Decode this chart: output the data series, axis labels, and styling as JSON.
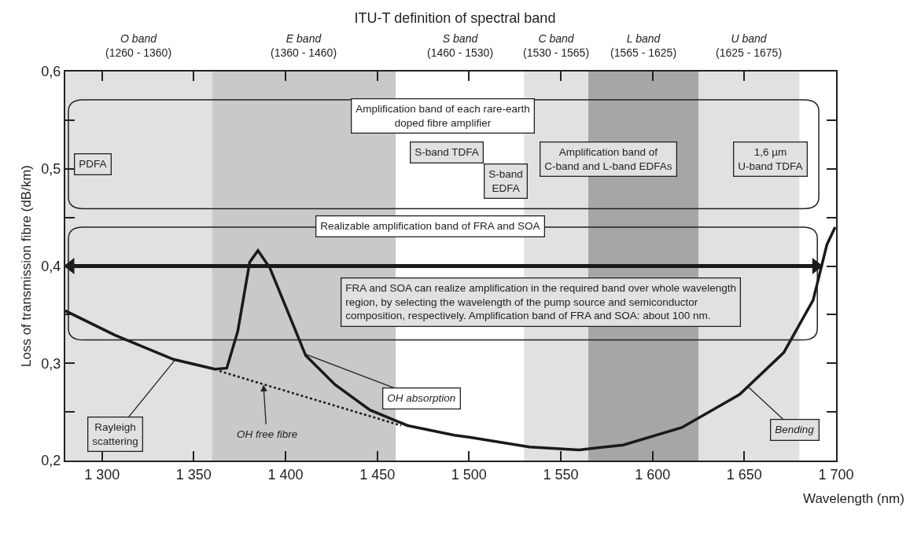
{
  "chart_data": {
    "type": "line",
    "title": "ITU-T definition of spectral band",
    "xlabel": "Wavelength (nm)",
    "ylabel": "Loss of transmission fibre (dB/km)",
    "xlim": [
      1280,
      1700
    ],
    "xticks": [
      {
        "value": 1300,
        "label": "1 300"
      },
      {
        "value": 1350,
        "label": "1 350"
      },
      {
        "value": 1400,
        "label": "1 400"
      },
      {
        "value": 1450,
        "label": "1 450"
      },
      {
        "value": 1500,
        "label": "1 500"
      },
      {
        "value": 1550,
        "label": "1 550"
      },
      {
        "value": 1600,
        "label": "1 600"
      },
      {
        "value": 1650,
        "label": "1 650"
      },
      {
        "value": 1700,
        "label": "1 700"
      }
    ],
    "ylim": [
      0.2,
      0.6
    ],
    "yticks": [
      {
        "value": 0.2,
        "label": "0,2"
      },
      {
        "value": 0.25,
        "label": null
      },
      {
        "value": 0.3,
        "label": "0,3"
      },
      {
        "value": 0.35,
        "label": null
      },
      {
        "value": 0.4,
        "label": "0,4"
      },
      {
        "value": 0.45,
        "label": null
      },
      {
        "value": 0.5,
        "label": "0,5"
      },
      {
        "value": 0.55,
        "label": null
      },
      {
        "value": 0.6,
        "label": "0,6"
      }
    ],
    "series": [
      {
        "color": "#1a1a1a",
        "line_style": "solid",
        "x": [
          1280,
          1307,
          1339,
          1361.5,
          1368,
          1374,
          1380.5,
          1385,
          1391.5,
          1403,
          1411,
          1427,
          1446,
          1466.5,
          1492,
          1500,
          1533,
          1560,
          1584,
          1616,
          1647.5,
          1671.5,
          1687.5,
          1695,
          1699.5
        ],
        "values": [
          0.354,
          0.329,
          0.304,
          0.294,
          0.295,
          0.333,
          0.404,
          0.416,
          0.398,
          0.345,
          0.308,
          0.278,
          0.252,
          0.236,
          0.226,
          0.224,
          0.214,
          0.211,
          0.216,
          0.234,
          0.268,
          0.311,
          0.365,
          0.422,
          0.44
        ]
      },
      {
        "color": "#1a1a1a",
        "line_style": "dotted",
        "x": [
          1364,
          1463
        ],
        "values": [
          0.292,
          0.236
        ]
      },
      {
        "color": "#1a1a1a",
        "line_style": "solid",
        "marker": "triangle",
        "x": [
          1283,
          1689
        ],
        "values": [
          0.4,
          0.4
        ]
      }
    ],
    "bands": [
      {
        "axis": "x",
        "from": 1280,
        "to": 1360,
        "label": "O band\n(1260 - 1360)",
        "color": "#e1e1e3"
      },
      {
        "axis": "x",
        "from": 1360,
        "to": 1460,
        "label": "E band\n(1360 - 1460)",
        "color": "#c9c9cb"
      },
      {
        "axis": "x",
        "from": 1530,
        "to": 1565,
        "label": "C band\n(1530 - 1565)",
        "color": "#e1e1e3"
      },
      {
        "axis": "x",
        "from": 1565,
        "to": 1625,
        "label": "L band\n(1565 - 1625)",
        "color": "#a6a6a9"
      },
      {
        "axis": "x",
        "from": 1625,
        "to": 1680,
        "label": "U band\n(1625 - 1675)",
        "color": "#e1e1e3"
      }
    ],
    "annotations": [
      "S band\n(1460 - 1530)",
      "Amplification band of each rare-earth\ndoped fibre amplifier",
      "PDFA",
      "S-band TDFA",
      "S-band\nEDFA",
      "Amplification band of\nC-band and L-band EDFAs",
      "1,6 µm\nU-band TDFA",
      "Realizable amplification band of FRA and SOA",
      "FRA and SOA can realize amplification in the required band over whole wavelength\nregion, by selecting the wavelength of the pump source and semiconductor\ncomposition, respectively. Amplification band of FRA and SOA: about 100 nm.",
      {
        "text": "Rayleigh\nscattering",
        "x": 1340,
        "y": 0.304
      },
      {
        "text": "OH free fibre",
        "x": 1388,
        "y": 0.278
      },
      {
        "text": "OH absorption",
        "x": 1410,
        "y": 0.31
      },
      {
        "text": "Bending",
        "x": 1652,
        "y": 0.276
      }
    ]
  }
}
